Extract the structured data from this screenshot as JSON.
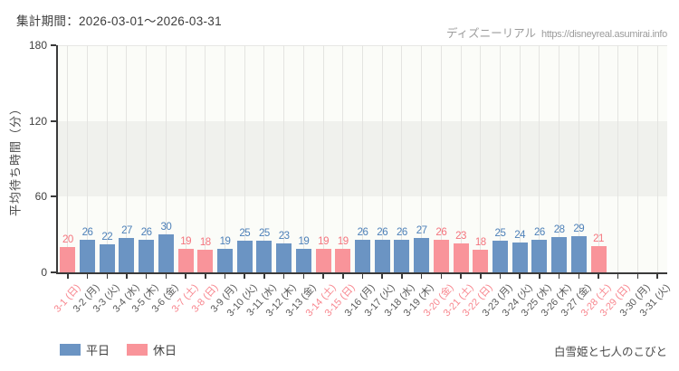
{
  "header": {
    "title": "集計期間：2026-03-01～2026-03-31",
    "watermark_site": "ディズニーリアル",
    "watermark_url": "https://disneyreal.asumirai.info"
  },
  "legend": {
    "weekday_label": "平日",
    "holiday_label": "休日"
  },
  "footer": {
    "attraction_name": "白雪姫と七人のこびと"
  },
  "colors": {
    "weekday_bar": "#6b94c3",
    "holiday_bar": "#f9949a",
    "weekday_value_label": "#4d80b8",
    "holiday_value_label": "#f4747d",
    "weekday_tick_label": "#595959",
    "holiday_tick_label": "#f8878f",
    "band_shade": "#f0f1ed",
    "plot_background": "#fbfcf8",
    "gridline": "#e4e4e1",
    "axis": "#3a3a3a"
  },
  "chart_data": {
    "type": "bar",
    "title": "集計期間：2026-03-01～2026-03-31",
    "xlabel": "",
    "ylabel": "平均待ち時間（分）",
    "ylim": [
      0,
      180
    ],
    "yticks": [
      0,
      60,
      120,
      180
    ],
    "shaded_band_y": [
      60,
      120
    ],
    "grid": true,
    "legend_entries": [
      "平日",
      "休日"
    ],
    "legend_position": "bottom-left",
    "days": [
      {
        "label": "3-1 (日)",
        "value": 20,
        "type": "holiday"
      },
      {
        "label": "3-2 (月)",
        "value": 26,
        "type": "weekday"
      },
      {
        "label": "3-3 (火)",
        "value": 22,
        "type": "weekday"
      },
      {
        "label": "3-4 (水)",
        "value": 27,
        "type": "weekday"
      },
      {
        "label": "3-5 (木)",
        "value": 26,
        "type": "weekday"
      },
      {
        "label": "3-6 (金)",
        "value": 30,
        "type": "weekday"
      },
      {
        "label": "3-7 (土)",
        "value": 19,
        "type": "holiday"
      },
      {
        "label": "3-8 (日)",
        "value": 18,
        "type": "holiday"
      },
      {
        "label": "3-9 (月)",
        "value": 19,
        "type": "weekday"
      },
      {
        "label": "3-10 (火)",
        "value": 25,
        "type": "weekday"
      },
      {
        "label": "3-11 (水)",
        "value": 25,
        "type": "weekday"
      },
      {
        "label": "3-12 (木)",
        "value": 23,
        "type": "weekday"
      },
      {
        "label": "3-13 (金)",
        "value": 19,
        "type": "weekday"
      },
      {
        "label": "3-14 (土)",
        "value": 19,
        "type": "holiday"
      },
      {
        "label": "3-15 (日)",
        "value": 19,
        "type": "holiday"
      },
      {
        "label": "3-16 (月)",
        "value": 26,
        "type": "weekday"
      },
      {
        "label": "3-17 (火)",
        "value": 26,
        "type": "weekday"
      },
      {
        "label": "3-18 (水)",
        "value": 26,
        "type": "weekday"
      },
      {
        "label": "3-19 (木)",
        "value": 27,
        "type": "weekday"
      },
      {
        "label": "3-20 (金)",
        "value": 26,
        "type": "holiday"
      },
      {
        "label": "3-21 (土)",
        "value": 23,
        "type": "holiday"
      },
      {
        "label": "3-22 (日)",
        "value": 18,
        "type": "holiday"
      },
      {
        "label": "3-23 (月)",
        "value": 25,
        "type": "weekday"
      },
      {
        "label": "3-24 (火)",
        "value": 24,
        "type": "weekday"
      },
      {
        "label": "3-25 (水)",
        "value": 26,
        "type": "weekday"
      },
      {
        "label": "3-26 (木)",
        "value": 28,
        "type": "weekday"
      },
      {
        "label": "3-27 (金)",
        "value": 29,
        "type": "weekday"
      },
      {
        "label": "3-28 (土)",
        "value": 21,
        "type": "holiday"
      },
      {
        "label": "3-29 (日)",
        "value": null,
        "type": "holiday"
      },
      {
        "label": "3-30 (月)",
        "value": null,
        "type": "weekday"
      },
      {
        "label": "3-31 (火)",
        "value": null,
        "type": "weekday"
      }
    ]
  }
}
